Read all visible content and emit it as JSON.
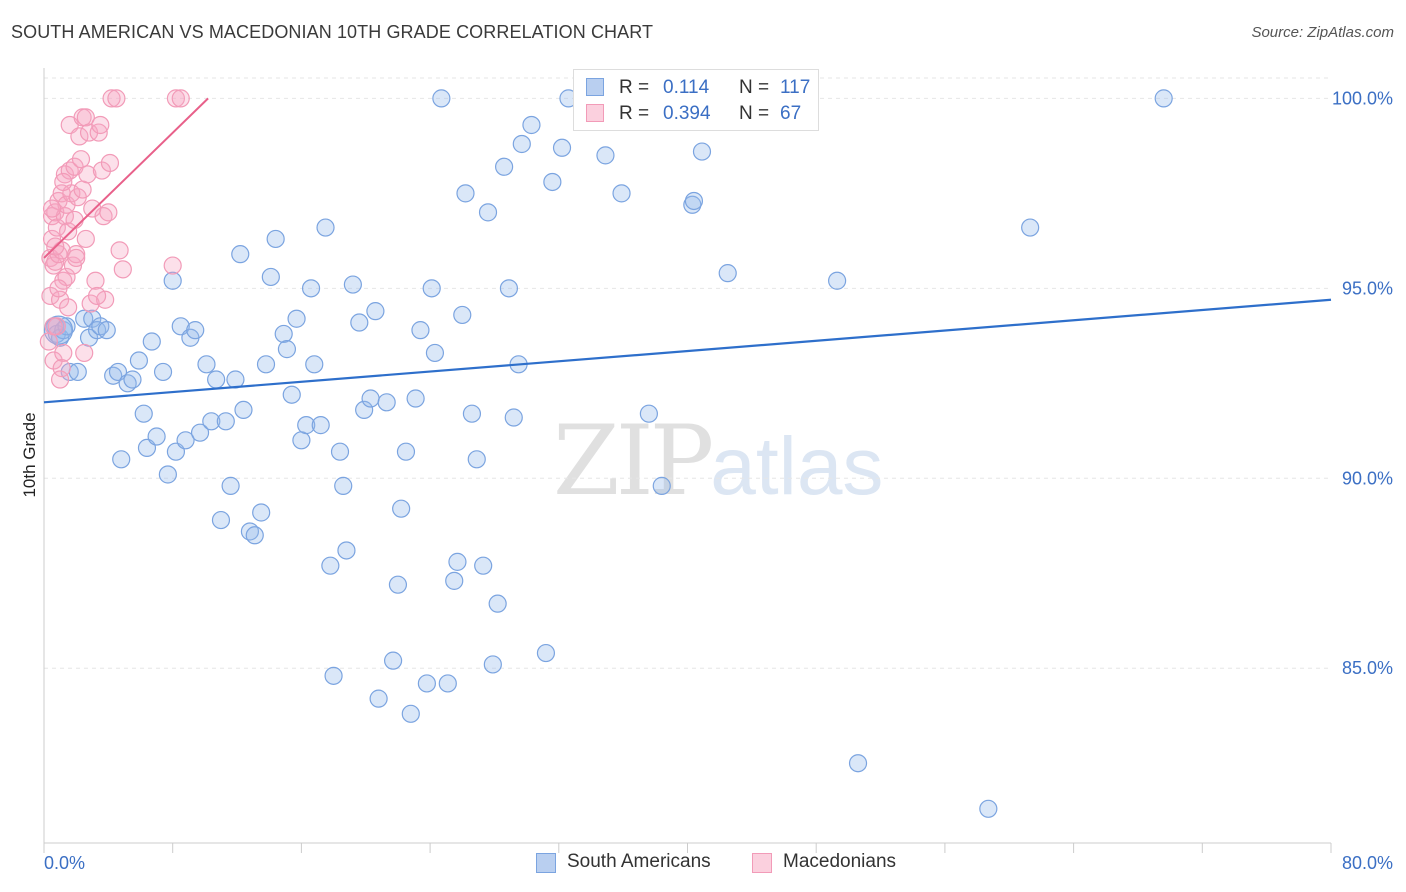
{
  "title": "SOUTH AMERICAN VS MACEDONIAN 10TH GRADE CORRELATION CHART",
  "source": "Source: ZipAtlas.com",
  "watermark": {
    "zip": "ZIP",
    "atlas": "atlas"
  },
  "colors": {
    "south_americans": "#7ba4e0",
    "south_americans_line": "#2e6fcb",
    "macedonians": "#f29bb8",
    "macedonians_line": "#e8608a",
    "tick_text": "#3b6fc4",
    "grid": "#e6e6e6"
  },
  "legend": {
    "rows": [
      {
        "r_label": "R =",
        "r_value": "0.114",
        "n_label": "N =",
        "n_value": "117"
      },
      {
        "r_label": "R =",
        "r_value": "0.394",
        "n_label": "N =",
        "n_value": "67"
      }
    ]
  },
  "chart_data": {
    "type": "scatter",
    "title": "SOUTH AMERICAN VS MACEDONIAN 10TH GRADE CORRELATION CHART",
    "xlabel": "",
    "ylabel": "10th Grade",
    "xlim": [
      0,
      80
    ],
    "ylim": [
      80.4,
      100.8
    ],
    "x_tick_labels": [
      "0.0%",
      "80.0%"
    ],
    "y_ticks": [
      85,
      90,
      95,
      100
    ],
    "y_tick_labels": [
      "85.0%",
      "90.0%",
      "95.0%",
      "100.0%"
    ],
    "grid": true,
    "legend_placement": "bottom",
    "series": [
      {
        "name": "South Americans",
        "r": 0.114,
        "n": 117,
        "trend": {
          "x": [
            0,
            80
          ],
          "y": [
            92.0,
            94.7
          ]
        },
        "points": [
          [
            0.7,
            94.0
          ],
          [
            0.8,
            93.8
          ],
          [
            1.0,
            93.7
          ],
          [
            1.2,
            93.9
          ],
          [
            1.4,
            94.0
          ],
          [
            1.6,
            92.8
          ],
          [
            2.1,
            92.8
          ],
          [
            2.5,
            94.2
          ],
          [
            2.8,
            93.7
          ],
          [
            3.0,
            94.2
          ],
          [
            3.3,
            93.9
          ],
          [
            3.5,
            94.0
          ],
          [
            3.9,
            93.9
          ],
          [
            4.3,
            92.7
          ],
          [
            4.6,
            92.8
          ],
          [
            4.8,
            90.5
          ],
          [
            5.2,
            92.5
          ],
          [
            5.5,
            92.6
          ],
          [
            5.9,
            93.1
          ],
          [
            6.2,
            91.7
          ],
          [
            6.4,
            90.8
          ],
          [
            6.7,
            93.6
          ],
          [
            7.0,
            91.1
          ],
          [
            7.4,
            92.8
          ],
          [
            7.7,
            90.1
          ],
          [
            8.0,
            95.2
          ],
          [
            8.2,
            90.7
          ],
          [
            8.5,
            94.0
          ],
          [
            8.8,
            91.0
          ],
          [
            9.1,
            93.7
          ],
          [
            9.4,
            93.9
          ],
          [
            9.7,
            91.2
          ],
          [
            10.1,
            93.0
          ],
          [
            10.4,
            91.5
          ],
          [
            10.7,
            92.6
          ],
          [
            11.0,
            88.9
          ],
          [
            11.3,
            91.5
          ],
          [
            11.6,
            89.8
          ],
          [
            11.9,
            92.6
          ],
          [
            12.2,
            95.9
          ],
          [
            12.4,
            91.8
          ],
          [
            12.8,
            88.6
          ],
          [
            13.1,
            88.5
          ],
          [
            13.5,
            89.1
          ],
          [
            13.8,
            93.0
          ],
          [
            14.1,
            95.3
          ],
          [
            14.4,
            96.3
          ],
          [
            14.9,
            93.8
          ],
          [
            15.1,
            93.4
          ],
          [
            15.4,
            92.2
          ],
          [
            15.7,
            94.2
          ],
          [
            16.0,
            91.0
          ],
          [
            16.3,
            91.4
          ],
          [
            16.6,
            95.0
          ],
          [
            16.8,
            93.0
          ],
          [
            17.2,
            91.4
          ],
          [
            17.5,
            96.6
          ],
          [
            17.8,
            87.7
          ],
          [
            18.0,
            84.8
          ],
          [
            18.4,
            90.7
          ],
          [
            18.6,
            89.8
          ],
          [
            18.8,
            88.1
          ],
          [
            19.2,
            95.1
          ],
          [
            19.6,
            94.1
          ],
          [
            19.9,
            91.8
          ],
          [
            20.3,
            92.1
          ],
          [
            20.6,
            94.4
          ],
          [
            20.8,
            84.2
          ],
          [
            21.3,
            92.0
          ],
          [
            21.7,
            85.2
          ],
          [
            22.0,
            87.2
          ],
          [
            22.2,
            89.2
          ],
          [
            22.5,
            90.7
          ],
          [
            22.8,
            83.8
          ],
          [
            23.1,
            92.1
          ],
          [
            23.4,
            93.9
          ],
          [
            23.8,
            84.6
          ],
          [
            24.1,
            95.0
          ],
          [
            24.3,
            93.3
          ],
          [
            24.7,
            100.0
          ],
          [
            25.1,
            84.6
          ],
          [
            25.5,
            87.3
          ],
          [
            25.7,
            87.8
          ],
          [
            26.0,
            94.3
          ],
          [
            26.2,
            97.5
          ],
          [
            26.6,
            91.7
          ],
          [
            26.9,
            90.5
          ],
          [
            27.3,
            87.7
          ],
          [
            27.6,
            97.0
          ],
          [
            27.9,
            85.1
          ],
          [
            28.2,
            86.7
          ],
          [
            28.6,
            98.2
          ],
          [
            28.9,
            95.0
          ],
          [
            29.2,
            91.6
          ],
          [
            29.5,
            93.0
          ],
          [
            29.7,
            98.8
          ],
          [
            30.3,
            99.3
          ],
          [
            31.2,
            85.4
          ],
          [
            31.6,
            97.8
          ],
          [
            32.2,
            98.7
          ],
          [
            32.6,
            100.0
          ],
          [
            34.9,
            98.5
          ],
          [
            35.9,
            97.5
          ],
          [
            36.5,
            99.6
          ],
          [
            37.6,
            91.7
          ],
          [
            38.4,
            89.8
          ],
          [
            38.7,
            100.0
          ],
          [
            40.3,
            97.2
          ],
          [
            40.4,
            97.3
          ],
          [
            40.9,
            98.6
          ],
          [
            42.5,
            95.4
          ],
          [
            49.3,
            95.2
          ],
          [
            50.6,
            82.5
          ],
          [
            58.7,
            81.3
          ],
          [
            61.3,
            96.6
          ],
          [
            69.6,
            100.0
          ],
          [
            0.9,
            93.9
          ]
        ]
      },
      {
        "name": "Macedonians",
        "r": 0.394,
        "n": 67,
        "trend": {
          "x": [
            0,
            10.2
          ],
          "y": [
            95.8,
            100.0
          ]
        },
        "points": [
          [
            0.3,
            93.6
          ],
          [
            0.4,
            94.8
          ],
          [
            0.4,
            95.8
          ],
          [
            0.5,
            96.3
          ],
          [
            0.5,
            96.9
          ],
          [
            0.6,
            93.1
          ],
          [
            0.6,
            95.6
          ],
          [
            0.7,
            97.0
          ],
          [
            0.7,
            95.7
          ],
          [
            0.8,
            94.0
          ],
          [
            0.8,
            96.6
          ],
          [
            0.9,
            95.9
          ],
          [
            0.9,
            97.3
          ],
          [
            1.0,
            92.6
          ],
          [
            1.0,
            94.7
          ],
          [
            1.1,
            96.0
          ],
          [
            1.1,
            97.5
          ],
          [
            1.2,
            93.3
          ],
          [
            1.2,
            95.2
          ],
          [
            1.3,
            96.9
          ],
          [
            1.3,
            98.0
          ],
          [
            1.4,
            97.2
          ],
          [
            1.4,
            95.3
          ],
          [
            1.5,
            96.5
          ],
          [
            1.6,
            98.1
          ],
          [
            1.6,
            99.3
          ],
          [
            1.7,
            97.5
          ],
          [
            1.8,
            95.6
          ],
          [
            1.9,
            96.8
          ],
          [
            1.9,
            98.2
          ],
          [
            2.0,
            95.9
          ],
          [
            2.1,
            97.4
          ],
          [
            2.2,
            99.0
          ],
          [
            2.3,
            98.4
          ],
          [
            2.4,
            97.6
          ],
          [
            2.4,
            99.5
          ],
          [
            2.5,
            93.3
          ],
          [
            2.6,
            99.5
          ],
          [
            2.7,
            98.0
          ],
          [
            2.8,
            99.1
          ],
          [
            2.9,
            94.6
          ],
          [
            3.0,
            97.1
          ],
          [
            3.2,
            95.2
          ],
          [
            3.4,
            99.1
          ],
          [
            3.5,
            99.3
          ],
          [
            3.6,
            98.1
          ],
          [
            3.7,
            96.9
          ],
          [
            3.8,
            94.7
          ],
          [
            4.0,
            97.0
          ],
          [
            4.1,
            98.3
          ],
          [
            4.2,
            100.0
          ],
          [
            4.5,
            100.0
          ],
          [
            4.7,
            96.0
          ],
          [
            4.9,
            95.5
          ],
          [
            8.0,
            95.6
          ],
          [
            8.2,
            100.0
          ],
          [
            8.5,
            100.0
          ],
          [
            0.6,
            94.0
          ],
          [
            1.1,
            92.9
          ],
          [
            2.0,
            95.8
          ],
          [
            0.5,
            97.1
          ],
          [
            0.7,
            96.1
          ],
          [
            0.9,
            95.0
          ],
          [
            1.5,
            94.5
          ],
          [
            2.6,
            96.3
          ],
          [
            3.3,
            94.8
          ],
          [
            1.2,
            97.8
          ]
        ]
      }
    ]
  },
  "bottom_legend": {
    "items": [
      "South Americans",
      "Macedonians"
    ]
  }
}
